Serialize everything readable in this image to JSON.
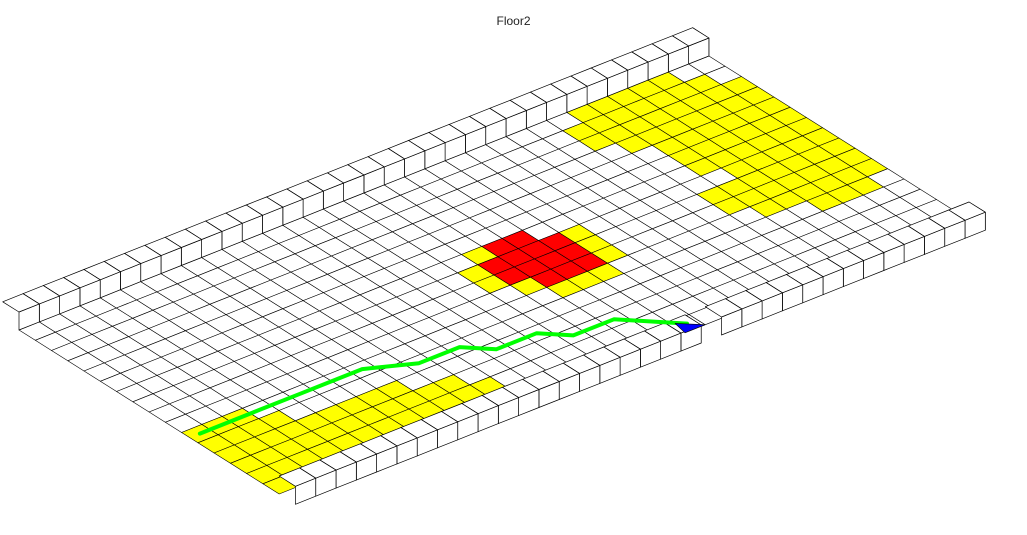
{
  "title": "Floor2",
  "grid": {
    "rows": 16,
    "cols": 34
  },
  "colors": {
    "background": "#ffffff",
    "floor": "#ffffff",
    "grid_line": "#000000",
    "warning": "#ffff00",
    "hazard": "#ff0000",
    "path": "#00ff00",
    "marker": "#0000ff"
  },
  "wall_gap_cols": [
    20
  ],
  "hazard_cells": [
    [
      6,
      18
    ],
    [
      6,
      19
    ],
    [
      7,
      17
    ],
    [
      7,
      18
    ],
    [
      7,
      19
    ],
    [
      7,
      20
    ],
    [
      8,
      17
    ],
    [
      8,
      18
    ],
    [
      8,
      19
    ],
    [
      8,
      20
    ],
    [
      9,
      18
    ],
    [
      9,
      19
    ],
    [
      9,
      20
    ]
  ],
  "warning_cells": [
    [
      0,
      27
    ],
    [
      0,
      28
    ],
    [
      0,
      29
    ],
    [
      0,
      30
    ],
    [
      0,
      31
    ],
    [
      1,
      26
    ],
    [
      1,
      27
    ],
    [
      1,
      28
    ],
    [
      1,
      29
    ],
    [
      1,
      30
    ],
    [
      1,
      31
    ],
    [
      1,
      32
    ],
    [
      2,
      26
    ],
    [
      2,
      27
    ],
    [
      2,
      28
    ],
    [
      2,
      29
    ],
    [
      2,
      30
    ],
    [
      2,
      31
    ],
    [
      2,
      32
    ],
    [
      2,
      33
    ],
    [
      3,
      27
    ],
    [
      3,
      28
    ],
    [
      3,
      29
    ],
    [
      3,
      30
    ],
    [
      3,
      31
    ],
    [
      3,
      32
    ],
    [
      3,
      33
    ],
    [
      4,
      28
    ],
    [
      4,
      29
    ],
    [
      4,
      30
    ],
    [
      4,
      31
    ],
    [
      4,
      32
    ],
    [
      4,
      33
    ],
    [
      5,
      28
    ],
    [
      5,
      29
    ],
    [
      5,
      30
    ],
    [
      5,
      31
    ],
    [
      5,
      32
    ],
    [
      5,
      33
    ],
    [
      6,
      28
    ],
    [
      6,
      29
    ],
    [
      6,
      30
    ],
    [
      6,
      31
    ],
    [
      6,
      32
    ],
    [
      6,
      33
    ],
    [
      7,
      29
    ],
    [
      7,
      30
    ],
    [
      7,
      31
    ],
    [
      7,
      32
    ],
    [
      7,
      33
    ],
    [
      8,
      27
    ],
    [
      8,
      28
    ],
    [
      8,
      29
    ],
    [
      8,
      30
    ],
    [
      8,
      31
    ],
    [
      8,
      32
    ],
    [
      8,
      33
    ],
    [
      9,
      27
    ],
    [
      9,
      28
    ],
    [
      9,
      29
    ],
    [
      9,
      30
    ],
    [
      9,
      31
    ],
    [
      9,
      32
    ],
    [
      9,
      33
    ],
    [
      10,
      28
    ],
    [
      10,
      29
    ],
    [
      10,
      30
    ],
    [
      10,
      31
    ],
    [
      10,
      32
    ],
    [
      10,
      33
    ],
    [
      11,
      30
    ],
    [
      11,
      31
    ],
    [
      11,
      32
    ],
    [
      6,
      17
    ],
    [
      7,
      16
    ],
    [
      7,
      21
    ],
    [
      8,
      16
    ],
    [
      8,
      21
    ],
    [
      9,
      17
    ],
    [
      9,
      21
    ],
    [
      10,
      18
    ],
    [
      10,
      19
    ],
    [
      10,
      20
    ],
    [
      10,
      0
    ],
    [
      10,
      1
    ],
    [
      10,
      2
    ],
    [
      11,
      0
    ],
    [
      11,
      1
    ],
    [
      11,
      2
    ],
    [
      11,
      3
    ],
    [
      12,
      0
    ],
    [
      12,
      1
    ],
    [
      12,
      2
    ],
    [
      12,
      3
    ],
    [
      12,
      4
    ],
    [
      12,
      5
    ],
    [
      12,
      6
    ],
    [
      12,
      7
    ],
    [
      12,
      8
    ],
    [
      13,
      0
    ],
    [
      13,
      1
    ],
    [
      13,
      2
    ],
    [
      13,
      3
    ],
    [
      13,
      4
    ],
    [
      13,
      5
    ],
    [
      13,
      6
    ],
    [
      13,
      7
    ],
    [
      13,
      8
    ],
    [
      13,
      9
    ],
    [
      13,
      10
    ],
    [
      14,
      0
    ],
    [
      14,
      1
    ],
    [
      14,
      2
    ],
    [
      14,
      3
    ],
    [
      14,
      4
    ],
    [
      14,
      5
    ],
    [
      14,
      6
    ],
    [
      14,
      7
    ],
    [
      14,
      8
    ],
    [
      14,
      9
    ],
    [
      14,
      10
    ],
    [
      14,
      11
    ],
    [
      15,
      0
    ],
    [
      15,
      1
    ],
    [
      15,
      2
    ],
    [
      15,
      3
    ],
    [
      15,
      4
    ],
    [
      15,
      5
    ],
    [
      15,
      6
    ],
    [
      15,
      7
    ],
    [
      15,
      8
    ],
    [
      15,
      9
    ],
    [
      15,
      10
    ],
    [
      15,
      11
    ]
  ],
  "path_cells": [
    [
      10,
      0
    ],
    [
      10,
      3
    ],
    [
      10,
      5
    ],
    [
      10,
      8
    ],
    [
      11,
      10
    ],
    [
      11,
      12
    ],
    [
      12,
      13
    ],
    [
      12,
      15
    ],
    [
      13,
      16
    ],
    [
      13,
      18
    ],
    [
      15,
      20
    ]
  ],
  "marker_cell": [
    15,
    20
  ]
}
